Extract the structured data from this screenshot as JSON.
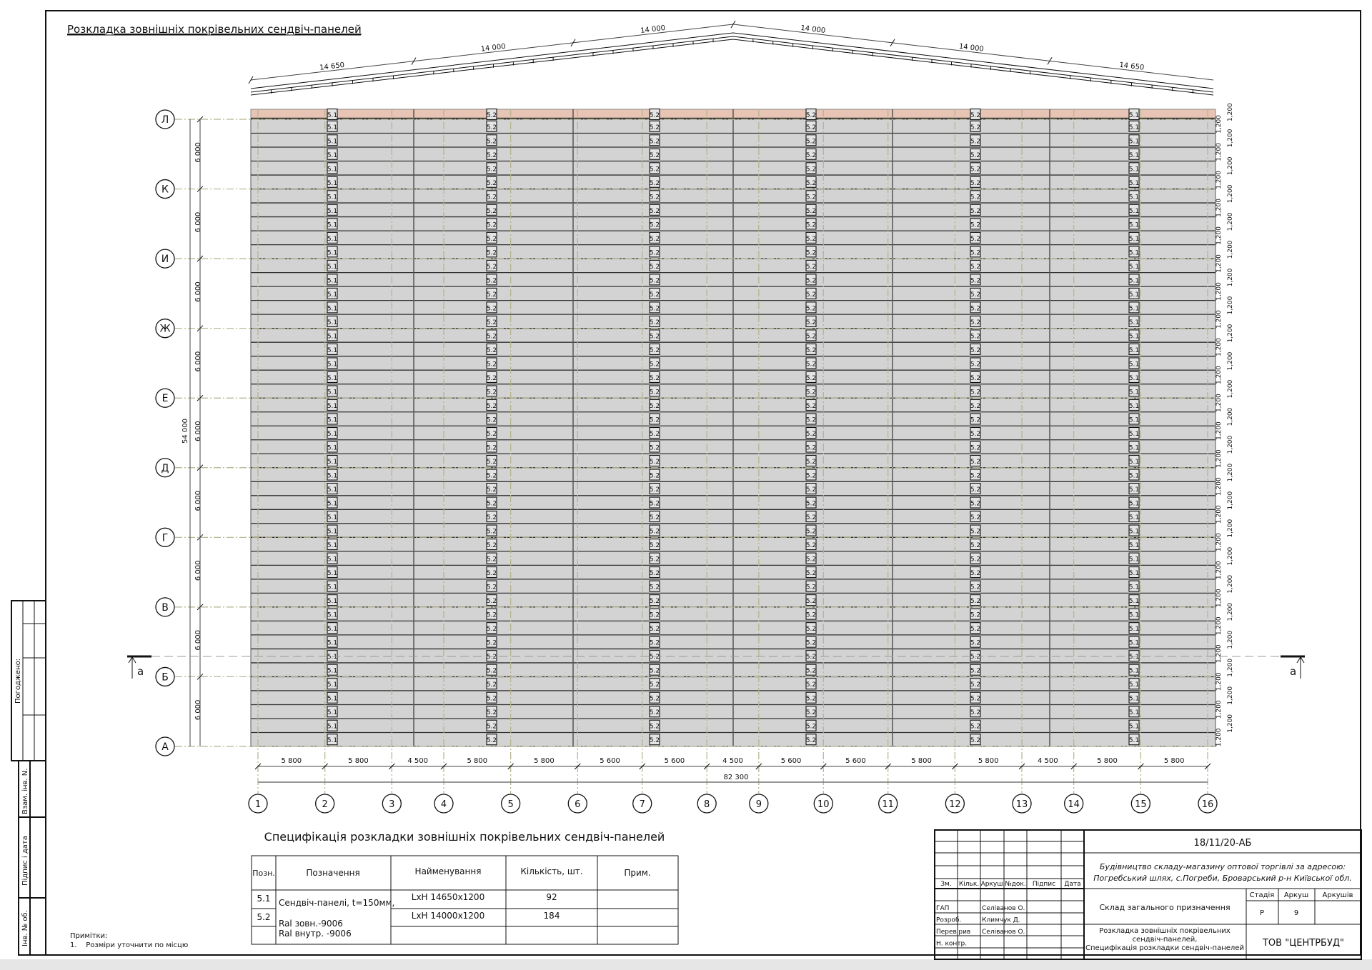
{
  "drawing_title": "Розкладка зовнішніх покрівельних сендвіч-панелей",
  "roof_dims": [
    "14 650",
    "14 000",
    "14 000",
    "14 000",
    "14 000",
    "14 650"
  ],
  "row_axes": [
    "Л",
    "К",
    "И",
    "Ж",
    "Е",
    "Д",
    "Г",
    "В",
    "Б",
    "А"
  ],
  "row_dim": "6 000",
  "row_total_dim": "54 000",
  "panel_height_dim": "1,200",
  "column_axes": [
    "1",
    "2",
    "3",
    "4",
    "5",
    "6",
    "7",
    "8",
    "9",
    "10",
    "11",
    "12",
    "13",
    "14",
    "15",
    "16"
  ],
  "column_dims": [
    "5 800",
    "5 800",
    "4 500",
    "5 800",
    "5 800",
    "5 600",
    "5 600",
    "4 500",
    "5 600",
    "5 600",
    "5 800",
    "5 800",
    "4 500",
    "5 800",
    "5 800"
  ],
  "column_total_dim": "82 300",
  "panel_tags": [
    "5.1",
    "5.2",
    "5.2",
    "5.2",
    "5.2",
    "5.1"
  ],
  "section_mark": "а",
  "colors": {
    "panel_fill": "#d3d3d3",
    "ridge_strip": "#e8c4b4",
    "axis_line": "#b4b28c"
  },
  "spec": {
    "title": "Специфікація розкладки зовнішніх покрівельних сендвіч-панелей",
    "headers": [
      "Позн.",
      "Позначення",
      "Найменування",
      "Кількість, шт.",
      "Прим."
    ],
    "designation": [
      "Сендвіч-панелі, t=150мм,",
      "Ral зовн.-9006",
      "Ral внутр. -9006"
    ],
    "rows": [
      {
        "pos": "5.1",
        "name": "LxH 14650x1200",
        "qty": "92",
        "note": ""
      },
      {
        "pos": "5.2",
        "name": "LxH 14000x1200",
        "qty": "184",
        "note": ""
      }
    ]
  },
  "notes": {
    "heading": "Примітки:",
    "items": [
      "1.    Розміри уточнити по місцю"
    ]
  },
  "stamp": {
    "agreed": "Погоджено:",
    "replace_inv": "Взам. інв. N.",
    "sign_date": "Підпис і дата",
    "inv_orig": "Інв. № об."
  },
  "title_block": {
    "code": "18/11/20-АБ",
    "project_line1": "Будівництво складу-магазину оптової торгівлі за адресою:",
    "project_line2": "Погребський шлях, с.Погреби, Броварський р-н Київської обл.",
    "object": "Склад загального призначення",
    "sheet_title": [
      "Розкладка зовнішніх покрівельних",
      "сендвіч-панелей,",
      "Специфікація розкладки сендвіч-панелей"
    ],
    "company": "ТОВ \"ЦЕНТРБУД\"",
    "rev_headers": [
      "Зм.",
      "Кільк.",
      "Аркуш",
      "№док.",
      "Підпис",
      "Дата"
    ],
    "stage_headers": [
      "Стадія",
      "Аркуш",
      "Аркушів"
    ],
    "stage": "Р",
    "sheet": "9",
    "sheets": "",
    "people": [
      {
        "role": "ГАП",
        "name": "Селіванов О."
      },
      {
        "role": "Розроб.",
        "name": "Климчук Д."
      },
      {
        "role": "Перевірив",
        "name": "Селіванов О."
      },
      {
        "role": "Н. контр.",
        "name": ""
      }
    ]
  }
}
